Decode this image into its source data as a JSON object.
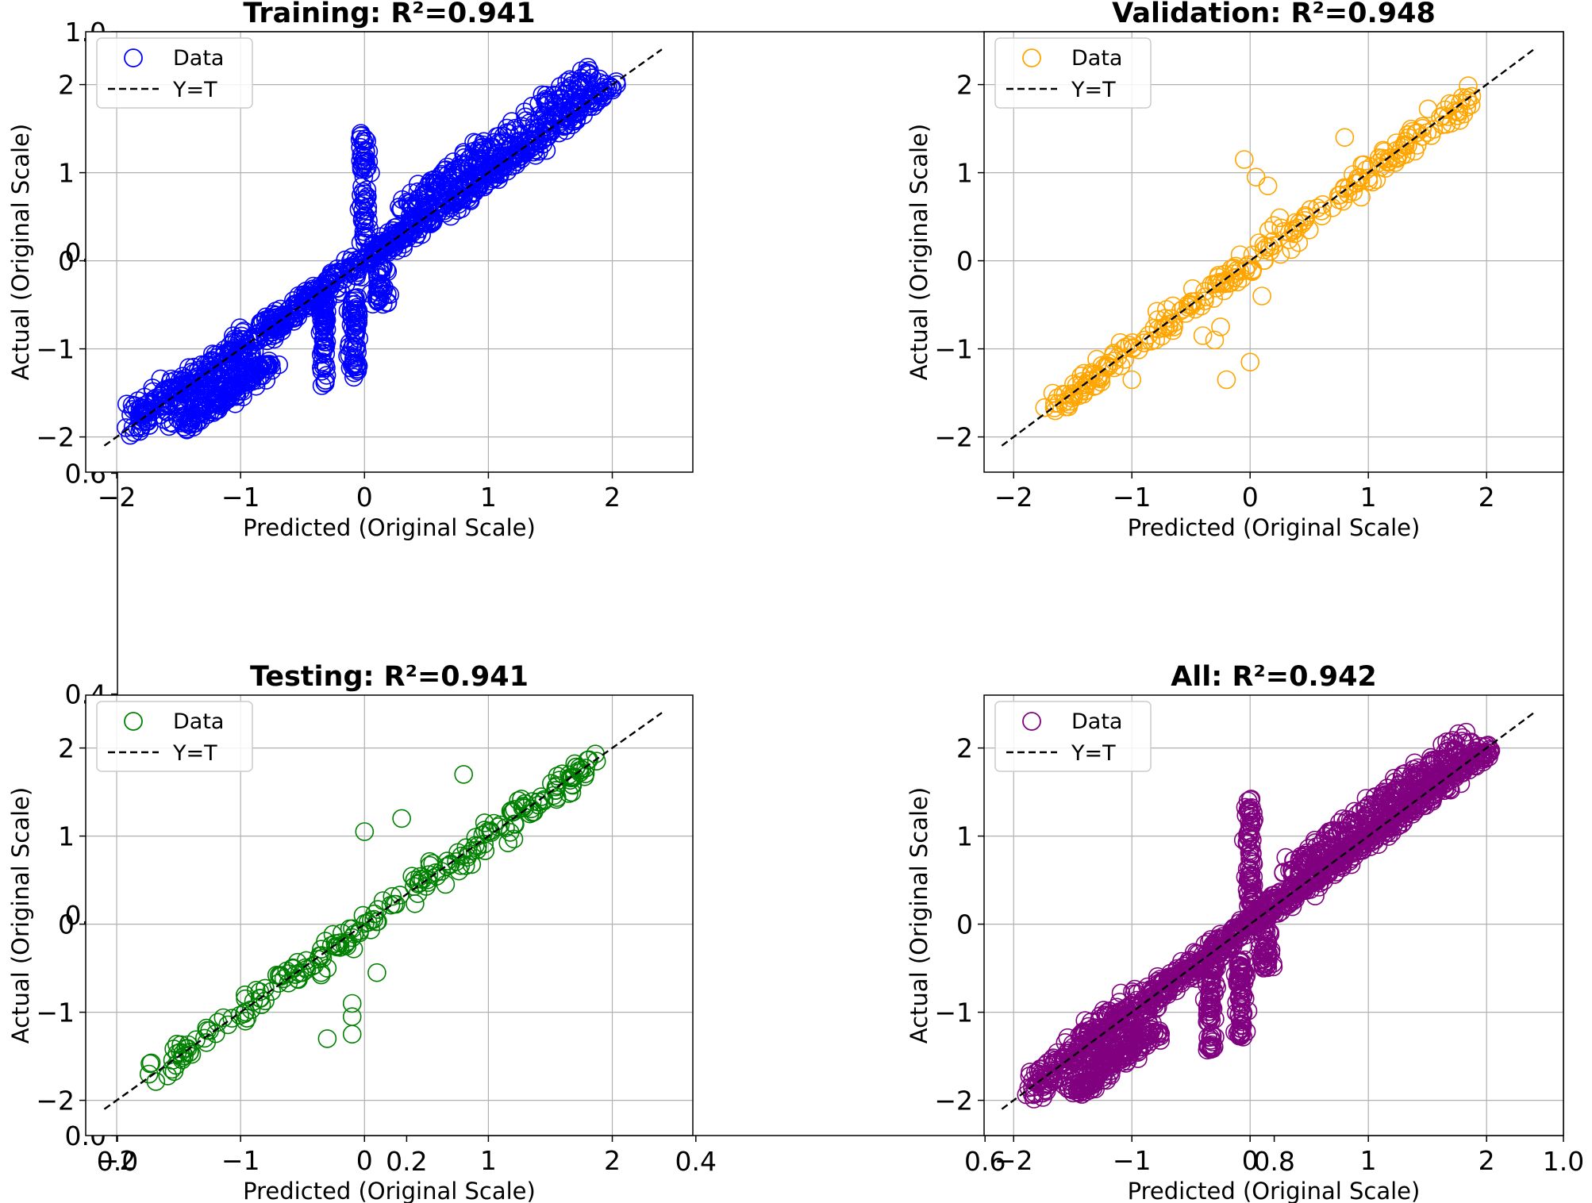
{
  "chart_data": {
    "type": "scatter",
    "outer_axis": {
      "xticks": [
        "0.0",
        "0.2",
        "0.4",
        "0.6",
        "0.8",
        "1.0"
      ],
      "yticks": [
        "0.0",
        "0.2",
        "0.4",
        "0.6",
        "0.8",
        "1.0"
      ],
      "xlim": [
        0,
        1
      ],
      "ylim": [
        0,
        1
      ]
    },
    "panels": [
      {
        "title": "Training: R²=0.941",
        "color": "#0000ff",
        "xlabel": "Predicted (Original Scale)",
        "ylabel": "Actual (Original Scale)",
        "xticks": [
          "−2",
          "−1",
          "0",
          "1",
          "2"
        ],
        "yticks": [
          "−2",
          "−1",
          "0",
          "1",
          "2"
        ],
        "xlim": [
          -2.25,
          2.65
        ],
        "ylim": [
          -2.4,
          2.6
        ],
        "legend": {
          "position": "top-left",
          "data_label": "Data",
          "line_label": "Y=T"
        },
        "line": [
          [
            -2.1,
            -2.1
          ],
          [
            2.4,
            2.4
          ]
        ]
      },
      {
        "title": "Validation: R²=0.948",
        "color": "#ffa500",
        "xlabel": "Predicted (Original Scale)",
        "ylabel": "Actual (Original Scale)",
        "xticks": [
          "−2",
          "−1",
          "0",
          "1",
          "2"
        ],
        "yticks": [
          "−2",
          "−1",
          "0",
          "1",
          "2"
        ],
        "xlim": [
          -2.25,
          2.65
        ],
        "ylim": [
          -2.4,
          2.6
        ],
        "legend": {
          "position": "top-left",
          "data_label": "Data",
          "line_label": "Y=T"
        },
        "line": [
          [
            -2.1,
            -2.1
          ],
          [
            2.4,
            2.4
          ]
        ]
      },
      {
        "title": "Testing: R²=0.941",
        "color": "#008000",
        "xlabel": "Predicted (Original Scale)",
        "ylabel": "Actual (Original Scale)",
        "xticks": [
          "−2",
          "−1",
          "0",
          "1",
          "2"
        ],
        "yticks": [
          "−2",
          "−1",
          "0",
          "1",
          "2"
        ],
        "xlim": [
          -2.25,
          2.65
        ],
        "ylim": [
          -2.4,
          2.6
        ],
        "legend": {
          "position": "top-left",
          "data_label": "Data",
          "line_label": "Y=T"
        },
        "line": [
          [
            -2.1,
            -2.1
          ],
          [
            2.4,
            2.4
          ]
        ]
      },
      {
        "title": "All: R²=0.942",
        "color": "#800080",
        "xlabel": "Predicted (Original Scale)",
        "ylabel": "Actual (Original Scale)",
        "xticks": [
          "−2",
          "−1",
          "0",
          "1",
          "2"
        ],
        "yticks": [
          "−2",
          "−1",
          "0",
          "1",
          "2"
        ],
        "xlim": [
          -2.25,
          2.65
        ],
        "ylim": [
          -2.4,
          2.6
        ],
        "legend": {
          "position": "top-left",
          "data_label": "Data",
          "line_label": "Y=T"
        },
        "line": [
          [
            -2.1,
            -2.1
          ],
          [
            2.4,
            2.4
          ]
        ]
      }
    ]
  }
}
